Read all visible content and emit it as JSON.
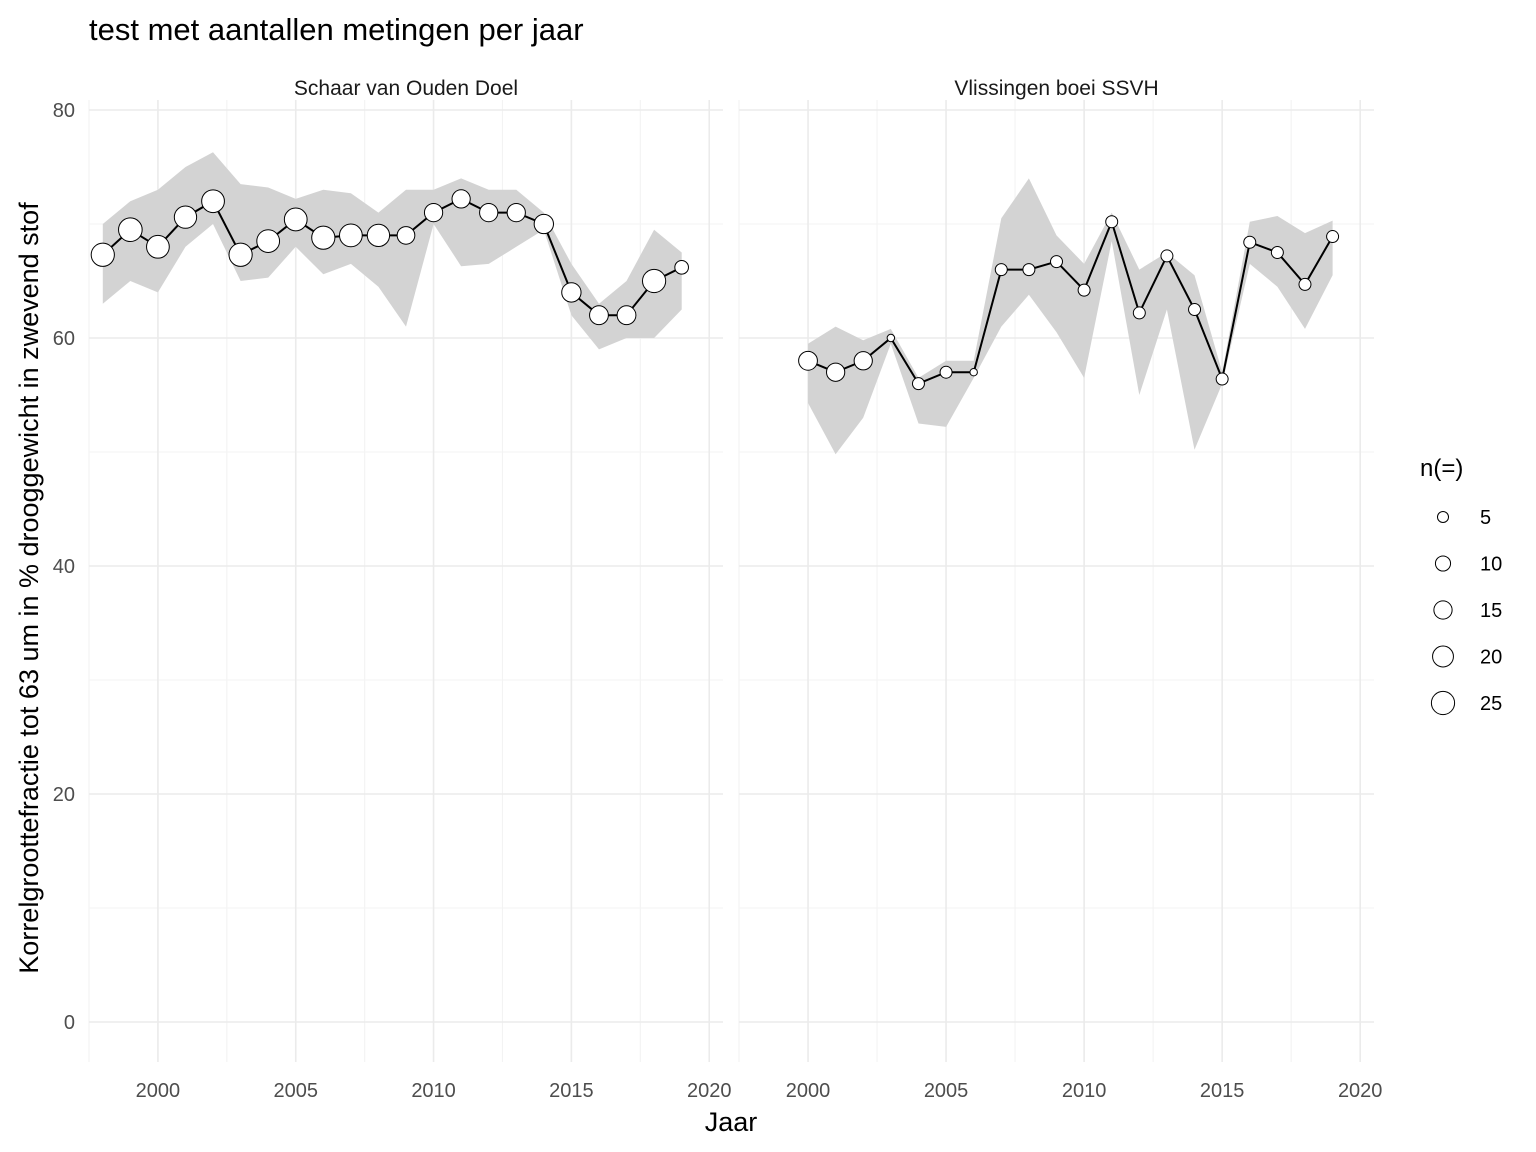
{
  "chart_data": {
    "type": "line",
    "title": "test met aantallen metingen per jaar",
    "xlabel": "Jaar",
    "ylabel": "Korrelgrootte­fractie tot 63 um in % drooggewicht in zwevend stof",
    "xlim": [
      1997.5,
      2020.5
    ],
    "ylim": [
      0,
      80
    ],
    "x_ticks": [
      "2000",
      "2005",
      "2010",
      "2015",
      "2020"
    ],
    "y_ticks": [
      "0",
      "20",
      "40",
      "60",
      "80"
    ],
    "legend": {
      "title": "n(=)",
      "position": "right",
      "entries": [
        {
          "label": "5",
          "n": 5
        },
        {
          "label": "10",
          "n": 10
        },
        {
          "label": "15",
          "n": 15
        },
        {
          "label": "20",
          "n": 20
        },
        {
          "label": "25",
          "n": 25
        }
      ]
    },
    "colors": {
      "ribbon": "#d3d3d3",
      "line": "#000000",
      "point_fill": "#ffffff"
    },
    "panels": [
      {
        "name": "Schaar van Ouden Doel",
        "series": [
          {
            "x": 1998,
            "y": 67.3,
            "n": 25,
            "lo": 63.0,
            "hi": 70.0
          },
          {
            "x": 1999,
            "y": 69.5,
            "n": 26,
            "lo": 65.0,
            "hi": 72.0
          },
          {
            "x": 2000,
            "y": 68.0,
            "n": 24,
            "lo": 64.0,
            "hi": 73.0
          },
          {
            "x": 2001,
            "y": 70.6,
            "n": 23,
            "lo": 68.0,
            "hi": 75.0
          },
          {
            "x": 2002,
            "y": 72.0,
            "n": 24,
            "lo": 70.0,
            "hi": 76.3
          },
          {
            "x": 2003,
            "y": 67.3,
            "n": 25,
            "lo": 65.0,
            "hi": 73.5
          },
          {
            "x": 2004,
            "y": 68.5,
            "n": 24,
            "lo": 65.3,
            "hi": 73.2
          },
          {
            "x": 2005,
            "y": 70.4,
            "n": 24,
            "lo": 68.0,
            "hi": 72.2
          },
          {
            "x": 2006,
            "y": 68.8,
            "n": 25,
            "lo": 65.6,
            "hi": 73.0
          },
          {
            "x": 2007,
            "y": 69.0,
            "n": 24,
            "lo": 66.5,
            "hi": 72.7
          },
          {
            "x": 2008,
            "y": 69.0,
            "n": 23,
            "lo": 64.5,
            "hi": 71.0
          },
          {
            "x": 2009,
            "y": 69.0,
            "n": 14,
            "lo": 61.0,
            "hi": 73.0
          },
          {
            "x": 2010,
            "y": 71.0,
            "n": 15,
            "lo": 70.0,
            "hi": 73.0
          },
          {
            "x": 2011,
            "y": 72.2,
            "n": 15,
            "lo": 66.3,
            "hi": 74.0
          },
          {
            "x": 2012,
            "y": 71.0,
            "n": 15,
            "lo": 66.5,
            "hi": 73.0
          },
          {
            "x": 2013,
            "y": 71.0,
            "n": 15,
            "lo": 68.0,
            "hi": 73.0
          },
          {
            "x": 2014,
            "y": 70.0,
            "n": 17,
            "lo": 69.5,
            "hi": 71.0
          },
          {
            "x": 2015,
            "y": 64.0,
            "n": 17,
            "lo": 62.0,
            "hi": 66.5
          },
          {
            "x": 2016,
            "y": 62.0,
            "n": 16,
            "lo": 59.0,
            "hi": 63.0
          },
          {
            "x": 2017,
            "y": 62.0,
            "n": 16,
            "lo": 60.0,
            "hi": 65.0
          },
          {
            "x": 2018,
            "y": 65.0,
            "n": 25,
            "lo": 60.0,
            "hi": 69.5
          },
          {
            "x": 2019,
            "y": 66.2,
            "n": 8,
            "lo": 62.5,
            "hi": 67.5
          }
        ]
      },
      {
        "name": "Vlissingen boei SSVH",
        "series": [
          {
            "x": 2000,
            "y": 58.0,
            "n": 16,
            "lo": 54.3,
            "hi": 59.5
          },
          {
            "x": 2001,
            "y": 57.0,
            "n": 15,
            "lo": 49.8,
            "hi": 61.0
          },
          {
            "x": 2002,
            "y": 58.0,
            "n": 15,
            "lo": 53.0,
            "hi": 59.8
          },
          {
            "x": 2003,
            "y": 60.0,
            "n": 2,
            "lo": 59.5,
            "hi": 60.8
          },
          {
            "x": 2004,
            "y": 56.0,
            "n": 6,
            "lo": 52.5,
            "hi": 56.5
          },
          {
            "x": 2005,
            "y": 57.0,
            "n": 6,
            "lo": 52.2,
            "hi": 58.0
          },
          {
            "x": 2006,
            "y": 57.0,
            "n": 2,
            "lo": 56.5,
            "hi": 58.0
          },
          {
            "x": 2007,
            "y": 66.0,
            "n": 6,
            "lo": 61.0,
            "hi": 70.5
          },
          {
            "x": 2008,
            "y": 66.0,
            "n": 6,
            "lo": 63.8,
            "hi": 74.0
          },
          {
            "x": 2009,
            "y": 66.7,
            "n": 6,
            "lo": 60.5,
            "hi": 69.0
          },
          {
            "x": 2010,
            "y": 64.2,
            "n": 6,
            "lo": 56.5,
            "hi": 66.5
          },
          {
            "x": 2011,
            "y": 70.2,
            "n": 6,
            "lo": 68.5,
            "hi": 71.0
          },
          {
            "x": 2012,
            "y": 62.2,
            "n": 6,
            "lo": 55.0,
            "hi": 66.0
          },
          {
            "x": 2013,
            "y": 67.2,
            "n": 6,
            "lo": 62.5,
            "hi": 67.5
          },
          {
            "x": 2014,
            "y": 62.5,
            "n": 6,
            "lo": 50.2,
            "hi": 65.5
          },
          {
            "x": 2015,
            "y": 56.4,
            "n": 6,
            "lo": 56.0,
            "hi": 57.0
          },
          {
            "x": 2016,
            "y": 68.4,
            "n": 6,
            "lo": 66.5,
            "hi": 70.2
          },
          {
            "x": 2017,
            "y": 67.5,
            "n": 6,
            "lo": 64.5,
            "hi": 70.7
          },
          {
            "x": 2018,
            "y": 64.7,
            "n": 6,
            "lo": 60.8,
            "hi": 69.2
          },
          {
            "x": 2019,
            "y": 68.9,
            "n": 6,
            "lo": 65.5,
            "hi": 70.3
          }
        ]
      }
    ]
  }
}
